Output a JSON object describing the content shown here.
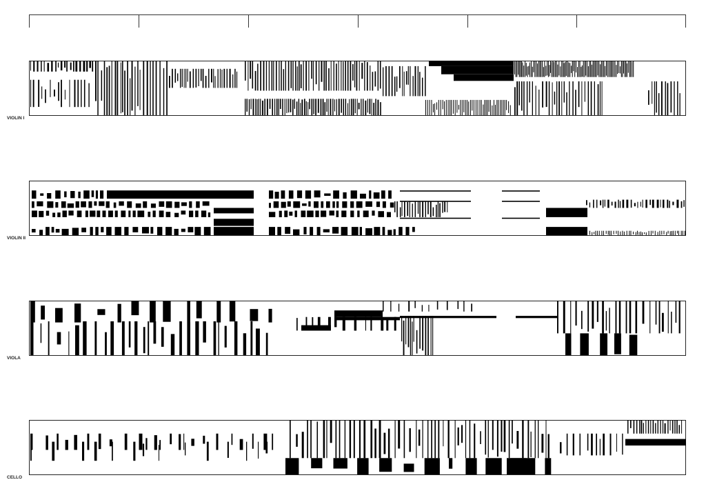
{
  "staves": [
    {
      "label": "VIOLIN I"
    },
    {
      "label": "VIOLIN II"
    },
    {
      "label": "VIOLA"
    },
    {
      "label": "CELLO"
    }
  ]
}
